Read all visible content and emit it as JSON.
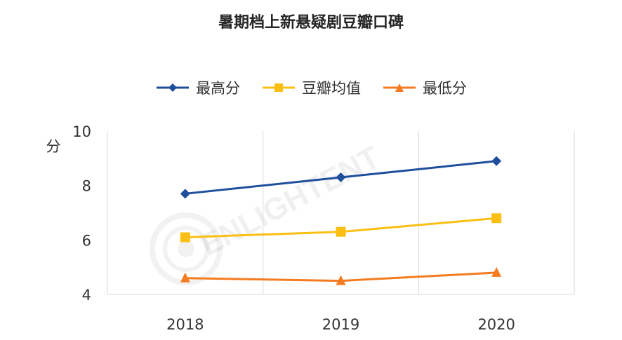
{
  "chart_data": {
    "type": "line",
    "title": "暑期档上新悬疑剧豆瓣口碑",
    "ylabel": "分",
    "xlabel": "",
    "categories": [
      "2018",
      "2019",
      "2020"
    ],
    "ylim": [
      4,
      10
    ],
    "yticks": [
      "10",
      "8",
      "6",
      "4"
    ],
    "grid": "vertical",
    "legend_position": "top",
    "series": [
      {
        "name": "最高分",
        "values": [
          7.7,
          8.3,
          8.9
        ],
        "color": "#1f4e9c",
        "marker": "diamond"
      },
      {
        "name": "豆瓣均值",
        "values": [
          6.1,
          6.3,
          6.8
        ],
        "color": "#fbbf14",
        "marker": "square"
      },
      {
        "name": "最低分",
        "values": [
          4.6,
          4.5,
          4.8
        ],
        "color": "#f47b20",
        "marker": "triangle"
      }
    ]
  },
  "watermark": "ENLIGHTENT"
}
